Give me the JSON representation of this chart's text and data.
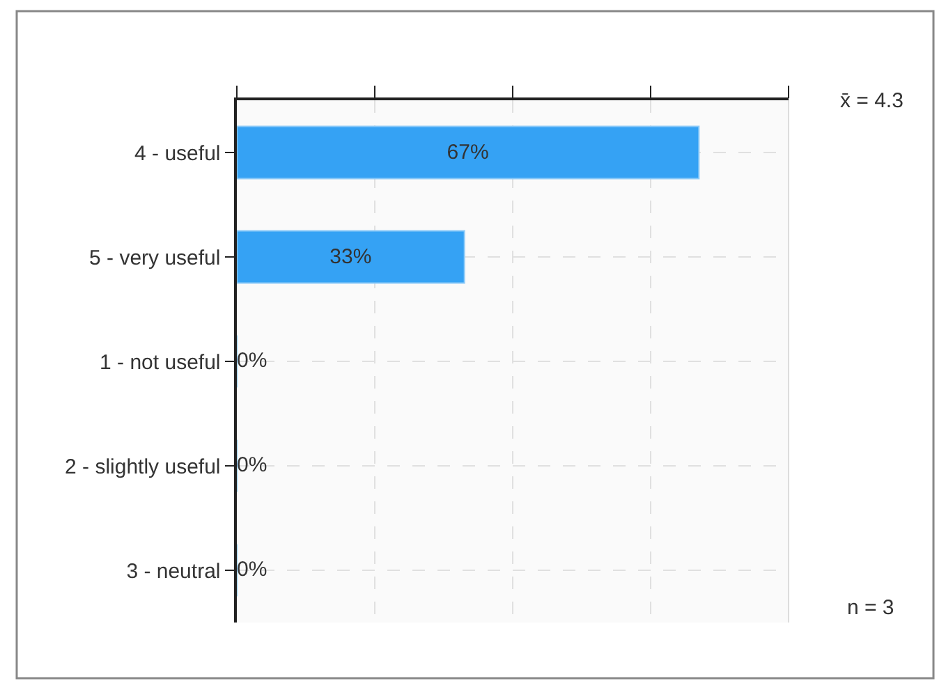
{
  "chart_data": {
    "type": "bar",
    "orientation": "horizontal",
    "categories": [
      "4 - useful",
      "5 - very useful",
      "1 - not useful",
      "2 - slightly useful",
      "3 - neutral"
    ],
    "values": [
      67,
      33,
      0,
      0,
      0
    ],
    "color": "#35a2f4",
    "value_labels": [
      "67%",
      "33%",
      "0%",
      "0%",
      "0%"
    ],
    "xlim": [
      0,
      80
    ],
    "xticks": [
      {
        "value": 0,
        "label": null
      },
      {
        "value": 20,
        "label": null
      },
      {
        "value": 40,
        "label": null
      },
      {
        "value": 60,
        "label": null
      },
      {
        "value": 80,
        "label": null
      }
    ],
    "tick_labels": "y",
    "grid": true,
    "annotations": [
      "x̄ = 4.3",
      "n = 3"
    ]
  }
}
